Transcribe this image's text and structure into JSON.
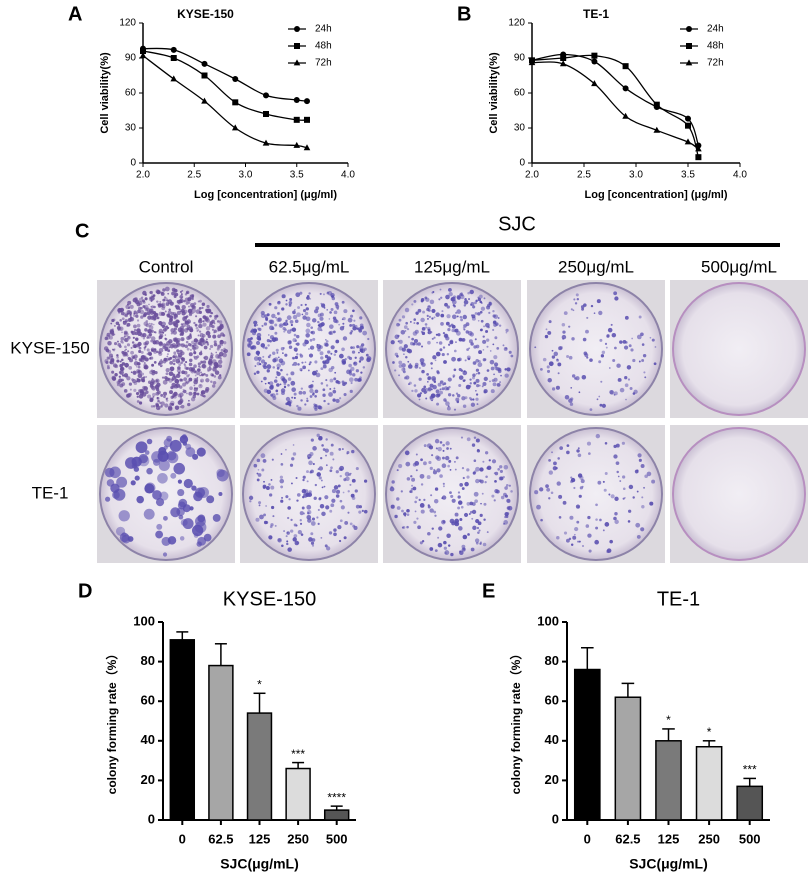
{
  "chart_data": [
    {
      "type": "line",
      "panel": "A",
      "title": "KYSE-150",
      "xlabel": "Log [concentration] (μg/ml)",
      "ylabel": "Cell viability(%)",
      "x": [
        2.0,
        2.3,
        2.6,
        2.9,
        3.2,
        3.5,
        3.6
      ],
      "series": [
        {
          "name": "24h",
          "marker": "circle",
          "color": "#000000",
          "values": [
            98,
            97,
            85,
            72,
            58,
            54,
            53
          ]
        },
        {
          "name": "48h",
          "marker": "square",
          "color": "#000000",
          "values": [
            96,
            90,
            75,
            52,
            42,
            37,
            37
          ]
        },
        {
          "name": "72h",
          "marker": "triangle",
          "color": "#000000",
          "values": [
            92,
            72,
            53,
            30,
            17,
            15,
            13
          ]
        }
      ],
      "xlim": [
        2.0,
        4.0
      ],
      "xticks": [
        {
          "value": 2.0,
          "label": "2.0"
        },
        {
          "value": 2.5,
          "label": "2.5"
        },
        {
          "value": 3.0,
          "label": "3.0"
        },
        {
          "value": 3.5,
          "label": "3.5"
        },
        {
          "value": 4.0,
          "label": "4.0"
        }
      ],
      "ylim": [
        0,
        120
      ],
      "yticks": [
        0,
        30,
        60,
        90,
        120
      ],
      "legend": "top-right"
    },
    {
      "type": "line",
      "panel": "B",
      "title": "TE-1",
      "xlabel": "Log [concentration] (μg/ml)",
      "ylabel": "Cell viability(%)",
      "x": [
        2.0,
        2.3,
        2.6,
        2.9,
        3.2,
        3.5,
        3.6
      ],
      "series": [
        {
          "name": "24h",
          "marker": "circle",
          "color": "#000000",
          "values": [
            88,
            93,
            87,
            64,
            48,
            38,
            15
          ]
        },
        {
          "name": "48h",
          "marker": "square",
          "color": "#000000",
          "values": [
            88,
            90,
            92,
            83,
            50,
            32,
            5
          ]
        },
        {
          "name": "72h",
          "marker": "triangle",
          "color": "#000000",
          "values": [
            86,
            85,
            68,
            40,
            28,
            18,
            12
          ]
        }
      ],
      "xlim": [
        2.0,
        4.0
      ],
      "xticks": [
        {
          "value": 2.0,
          "label": "2.0"
        },
        {
          "value": 2.5,
          "label": "2.5"
        },
        {
          "value": 3.0,
          "label": "3.0"
        },
        {
          "value": 3.5,
          "label": "3.5"
        },
        {
          "value": 4.0,
          "label": "4.0"
        }
      ],
      "ylim": [
        0,
        120
      ],
      "yticks": [
        0,
        30,
        60,
        90,
        120
      ],
      "legend": "top-right"
    },
    {
      "type": "bar",
      "panel": "D",
      "title": "KYSE-150",
      "xlabel": "SJC(μg/mL)",
      "ylabel": "colony forming rate（%）",
      "categories": [
        "0",
        "62.5",
        "125",
        "250",
        "500"
      ],
      "values": [
        91,
        78,
        54,
        26,
        5
      ],
      "errors": [
        4,
        11,
        10,
        3,
        2
      ],
      "annotations": [
        null,
        null,
        "*",
        "***",
        "****"
      ],
      "colors": [
        "#000000",
        "#a6a6a6",
        "#7a7a7a",
        "#dcdcdc",
        "#555555"
      ],
      "ylim": [
        0,
        100
      ],
      "yticks": [
        0,
        20,
        40,
        60,
        80,
        100
      ]
    },
    {
      "type": "bar",
      "panel": "E",
      "title": "TE-1",
      "xlabel": "SJC(μg/mL)",
      "ylabel": "colony forming rate（%）",
      "categories": [
        "0",
        "62.5",
        "125",
        "250",
        "500"
      ],
      "values": [
        76,
        62,
        40,
        37,
        17
      ],
      "errors": [
        11,
        7,
        6,
        3,
        4
      ],
      "annotations": [
        null,
        null,
        "*",
        "*",
        "***"
      ],
      "colors": [
        "#000000",
        "#a6a6a6",
        "#7a7a7a",
        "#dcdcdc",
        "#555555"
      ],
      "ylim": [
        0,
        100
      ],
      "yticks": [
        0,
        20,
        40,
        60,
        80,
        100
      ]
    }
  ],
  "plates": {
    "panel": "C",
    "group_label": "SJC",
    "columns": [
      "Control",
      "62.5μg/mL",
      "125μg/mL",
      "250μg/mL",
      "500μg/mL"
    ],
    "rows": [
      "KYSE-150",
      "TE-1"
    ]
  }
}
